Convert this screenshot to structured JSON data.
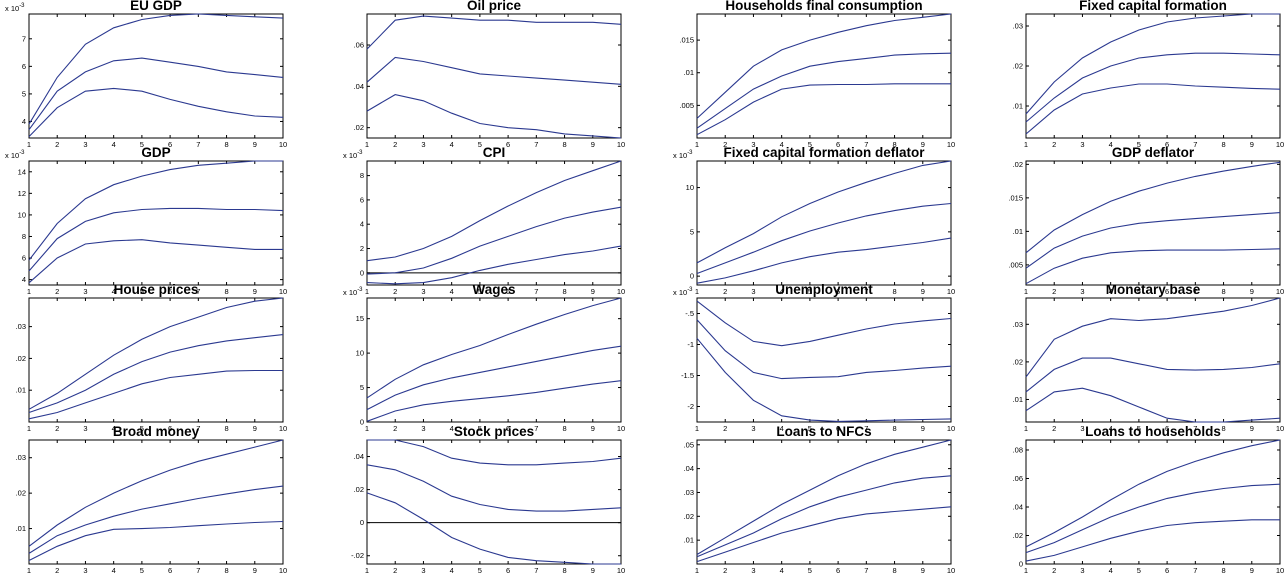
{
  "colors": {
    "line": "#2b3990",
    "axis": "#000000",
    "zero": "#000000"
  },
  "x_ticks": [
    1,
    2,
    3,
    4,
    5,
    6,
    7,
    8,
    9,
    10
  ],
  "chart_data": [
    {
      "type": "line",
      "title": "EU GDP",
      "exponent": "x 10",
      "exponent_power": "-3",
      "ylim": [
        3.4,
        7.9
      ],
      "yticks": [
        4,
        5,
        6,
        7
      ],
      "x": [
        1,
        2,
        3,
        4,
        5,
        6,
        7,
        8,
        9,
        10
      ],
      "series": [
        {
          "values": [
            3.9,
            5.6,
            6.8,
            7.4,
            7.7,
            7.85,
            7.9,
            7.85,
            7.8,
            7.75
          ]
        },
        {
          "values": [
            3.7,
            5.1,
            5.8,
            6.2,
            6.3,
            6.15,
            6.0,
            5.8,
            5.7,
            5.6
          ]
        },
        {
          "values": [
            3.45,
            4.5,
            5.1,
            5.2,
            5.1,
            4.8,
            4.55,
            4.35,
            4.2,
            4.15
          ]
        }
      ]
    },
    {
      "type": "line",
      "title": "Oil price",
      "ylim": [
        0.015,
        0.075
      ],
      "yticks": [
        0.02,
        0.04,
        0.06
      ],
      "x": [
        1,
        2,
        3,
        4,
        5,
        6,
        7,
        8,
        9,
        10
      ],
      "series": [
        {
          "values": [
            0.058,
            0.072,
            0.074,
            0.073,
            0.072,
            0.072,
            0.071,
            0.071,
            0.071,
            0.07
          ]
        },
        {
          "values": [
            0.042,
            0.054,
            0.052,
            0.049,
            0.046,
            0.045,
            0.044,
            0.043,
            0.042,
            0.041
          ]
        },
        {
          "values": [
            0.028,
            0.036,
            0.033,
            0.027,
            0.022,
            0.02,
            0.019,
            0.017,
            0.016,
            0.015
          ]
        }
      ]
    },
    {
      "type": "line",
      "title": "Households final consumption",
      "ylim": [
        0.0,
        0.019
      ],
      "yticks": [
        0.005,
        0.01,
        0.015
      ],
      "x": [
        1,
        2,
        3,
        4,
        5,
        6,
        7,
        8,
        9,
        10
      ],
      "series": [
        {
          "values": [
            0.003,
            0.007,
            0.011,
            0.0135,
            0.015,
            0.0162,
            0.0172,
            0.018,
            0.0185,
            0.019
          ]
        },
        {
          "values": [
            0.0015,
            0.0045,
            0.0075,
            0.0095,
            0.011,
            0.0117,
            0.0122,
            0.0127,
            0.0129,
            0.013
          ]
        },
        {
          "values": [
            0.0005,
            0.0028,
            0.0055,
            0.0075,
            0.0081,
            0.0082,
            0.0082,
            0.0083,
            0.0083,
            0.0083
          ]
        }
      ]
    },
    {
      "type": "line",
      "title": "Fixed capital formation",
      "ylim": [
        0.002,
        0.033
      ],
      "yticks": [
        0.01,
        0.02,
        0.03
      ],
      "x": [
        1,
        2,
        3,
        4,
        5,
        6,
        7,
        8,
        9,
        10
      ],
      "series": [
        {
          "values": [
            0.008,
            0.016,
            0.022,
            0.026,
            0.029,
            0.031,
            0.032,
            0.0325,
            0.033,
            0.033
          ]
        },
        {
          "values": [
            0.006,
            0.012,
            0.017,
            0.02,
            0.022,
            0.0228,
            0.0232,
            0.0232,
            0.023,
            0.0228
          ]
        },
        {
          "values": [
            0.003,
            0.009,
            0.013,
            0.0145,
            0.0155,
            0.0155,
            0.015,
            0.0147,
            0.0144,
            0.0142
          ]
        }
      ]
    },
    {
      "type": "line",
      "title": "GDP",
      "exponent": "x 10",
      "exponent_power": "-3",
      "ylim": [
        3.5,
        15
      ],
      "yticks": [
        4,
        6,
        8,
        10,
        12,
        14
      ],
      "x": [
        1,
        2,
        3,
        4,
        5,
        6,
        7,
        8,
        9,
        10
      ],
      "series": [
        {
          "values": [
            5.8,
            9.2,
            11.5,
            12.8,
            13.6,
            14.2,
            14.6,
            14.8,
            15.0,
            15.0
          ]
        },
        {
          "values": [
            4.8,
            7.8,
            9.4,
            10.2,
            10.5,
            10.6,
            10.6,
            10.5,
            10.5,
            10.4
          ]
        },
        {
          "values": [
            3.7,
            6.0,
            7.3,
            7.6,
            7.7,
            7.4,
            7.2,
            7.0,
            6.8,
            6.8
          ]
        }
      ]
    },
    {
      "type": "line",
      "title": "CPI",
      "exponent": "x 10",
      "exponent_power": "-3",
      "ylim": [
        -1.0,
        9.2
      ],
      "yticks": [
        0,
        2,
        4,
        6,
        8
      ],
      "zero_line": true,
      "x": [
        1,
        2,
        3,
        4,
        5,
        6,
        7,
        8,
        9,
        10
      ],
      "series": [
        {
          "values": [
            1.0,
            1.3,
            2.0,
            3.0,
            4.3,
            5.5,
            6.6,
            7.6,
            8.4,
            9.2
          ]
        },
        {
          "values": [
            -0.1,
            0.0,
            0.4,
            1.2,
            2.2,
            3.0,
            3.8,
            4.5,
            5.0,
            5.4
          ]
        },
        {
          "values": [
            -0.8,
            -0.9,
            -0.8,
            -0.4,
            0.2,
            0.7,
            1.1,
            1.5,
            1.8,
            2.2
          ]
        }
      ]
    },
    {
      "type": "line",
      "title": "Fixed capital formation deflator",
      "exponent": "x 10",
      "exponent_power": "-3",
      "ylim": [
        -1.0,
        13.0
      ],
      "yticks": [
        0,
        5,
        10
      ],
      "x": [
        1,
        2,
        3,
        4,
        5,
        6,
        7,
        8,
        9,
        10
      ],
      "series": [
        {
          "values": [
            1.5,
            3.2,
            4.8,
            6.7,
            8.2,
            9.5,
            10.6,
            11.6,
            12.5,
            13.0
          ]
        },
        {
          "values": [
            0.3,
            1.5,
            2.7,
            4.0,
            5.1,
            6.0,
            6.8,
            7.4,
            7.9,
            8.2
          ]
        },
        {
          "values": [
            -0.8,
            -0.2,
            0.6,
            1.5,
            2.2,
            2.7,
            3.0,
            3.4,
            3.8,
            4.3
          ]
        }
      ]
    },
    {
      "type": "line",
      "title": "GDP deflator",
      "ylim": [
        0.002,
        0.0205
      ],
      "yticks": [
        0.005,
        0.01,
        0.015,
        0.02
      ],
      "x": [
        1,
        2,
        3,
        4,
        5,
        6,
        7,
        8,
        9,
        10
      ],
      "series": [
        {
          "values": [
            0.0068,
            0.0102,
            0.0125,
            0.0145,
            0.016,
            0.0172,
            0.0182,
            0.019,
            0.0197,
            0.0203
          ]
        },
        {
          "values": [
            0.0045,
            0.0075,
            0.0093,
            0.0105,
            0.0112,
            0.0116,
            0.0119,
            0.0122,
            0.0125,
            0.0128
          ]
        },
        {
          "values": [
            0.0022,
            0.0045,
            0.006,
            0.0068,
            0.0071,
            0.0072,
            0.0072,
            0.0072,
            0.0073,
            0.0074
          ]
        }
      ]
    },
    {
      "type": "line",
      "title": "House prices",
      "ylim": [
        0.0,
        0.039
      ],
      "yticks": [
        0.01,
        0.02,
        0.03
      ],
      "x": [
        1,
        2,
        3,
        4,
        5,
        6,
        7,
        8,
        9,
        10
      ],
      "series": [
        {
          "values": [
            0.004,
            0.009,
            0.015,
            0.021,
            0.026,
            0.03,
            0.033,
            0.036,
            0.038,
            0.039
          ]
        },
        {
          "values": [
            0.003,
            0.006,
            0.01,
            0.015,
            0.019,
            0.022,
            0.024,
            0.0255,
            0.0265,
            0.0275
          ]
        },
        {
          "values": [
            0.001,
            0.003,
            0.006,
            0.009,
            0.012,
            0.014,
            0.015,
            0.016,
            0.0162,
            0.0162
          ]
        }
      ]
    },
    {
      "type": "line",
      "title": "Wages",
      "exponent": "x 10",
      "exponent_power": "-3",
      "ylim": [
        0.0,
        18.0
      ],
      "yticks": [
        0,
        5,
        10,
        15
      ],
      "x": [
        1,
        2,
        3,
        4,
        5,
        6,
        7,
        8,
        9,
        10
      ],
      "series": [
        {
          "values": [
            3.5,
            6.2,
            8.3,
            9.8,
            11.1,
            12.7,
            14.2,
            15.6,
            16.9,
            18.0
          ]
        },
        {
          "values": [
            1.8,
            3.9,
            5.4,
            6.4,
            7.2,
            8.0,
            8.8,
            9.6,
            10.4,
            11.0
          ]
        },
        {
          "values": [
            0.1,
            1.6,
            2.5,
            3.0,
            3.4,
            3.8,
            4.3,
            4.9,
            5.5,
            6.0
          ]
        }
      ]
    },
    {
      "type": "line",
      "title": "Unemployment",
      "exponent": "x 10",
      "exponent_power": "-3",
      "ylim": [
        -2.25,
        -0.25
      ],
      "yticks": [
        -2,
        -1.5,
        -1,
        -0.5
      ],
      "x": [
        1,
        2,
        3,
        4,
        5,
        6,
        7,
        8,
        9,
        10
      ],
      "series": [
        {
          "values": [
            -0.3,
            -0.65,
            -0.95,
            -1.02,
            -0.95,
            -0.85,
            -0.75,
            -0.67,
            -0.62,
            -0.58
          ]
        },
        {
          "values": [
            -0.6,
            -1.1,
            -1.45,
            -1.55,
            -1.53,
            -1.52,
            -1.45,
            -1.42,
            -1.38,
            -1.35
          ]
        },
        {
          "values": [
            -0.9,
            -1.45,
            -1.9,
            -2.15,
            -2.22,
            -2.24,
            -2.23,
            -2.22,
            -2.21,
            -2.2
          ]
        }
      ]
    },
    {
      "type": "line",
      "title": "Monetary base",
      "ylim": [
        0.004,
        0.037
      ],
      "yticks": [
        0.01,
        0.02,
        0.03
      ],
      "x": [
        1,
        2,
        3,
        4,
        5,
        6,
        7,
        8,
        9,
        10
      ],
      "series": [
        {
          "values": [
            0.016,
            0.026,
            0.0295,
            0.0315,
            0.031,
            0.0315,
            0.0325,
            0.0335,
            0.035,
            0.037
          ]
        },
        {
          "values": [
            0.012,
            0.018,
            0.021,
            0.021,
            0.0195,
            0.018,
            0.0178,
            0.018,
            0.0185,
            0.0195
          ]
        },
        {
          "values": [
            0.007,
            0.012,
            0.013,
            0.011,
            0.008,
            0.005,
            0.004,
            0.004,
            0.0045,
            0.005
          ]
        }
      ]
    },
    {
      "type": "line",
      "title": "Broad money",
      "ylim": [
        0.0,
        0.035
      ],
      "yticks": [
        0.01,
        0.02,
        0.03
      ],
      "x": [
        1,
        2,
        3,
        4,
        5,
        6,
        7,
        8,
        9,
        10
      ],
      "series": [
        {
          "values": [
            0.005,
            0.011,
            0.016,
            0.02,
            0.0235,
            0.0265,
            0.029,
            0.031,
            0.033,
            0.035
          ]
        },
        {
          "values": [
            0.003,
            0.008,
            0.011,
            0.0135,
            0.0155,
            0.017,
            0.0185,
            0.0198,
            0.021,
            0.022
          ]
        },
        {
          "values": [
            0.001,
            0.005,
            0.008,
            0.0098,
            0.01,
            0.0103,
            0.0108,
            0.0113,
            0.0117,
            0.012
          ]
        }
      ]
    },
    {
      "type": "line",
      "title": "Stock prices",
      "ylim": [
        -0.025,
        0.05
      ],
      "yticks": [
        -0.02,
        0,
        0.02,
        0.04
      ],
      "zero_line": true,
      "x": [
        1,
        2,
        3,
        4,
        5,
        6,
        7,
        8,
        9,
        10
      ],
      "series": [
        {
          "values": [
            0.05,
            0.05,
            0.046,
            0.039,
            0.036,
            0.035,
            0.035,
            0.036,
            0.037,
            0.039
          ]
        },
        {
          "values": [
            0.035,
            0.032,
            0.025,
            0.016,
            0.011,
            0.008,
            0.007,
            0.007,
            0.008,
            0.009
          ]
        },
        {
          "values": [
            0.018,
            0.012,
            0.002,
            -0.009,
            -0.016,
            -0.021,
            -0.023,
            -0.024,
            -0.025,
            -0.025
          ]
        }
      ]
    },
    {
      "type": "line",
      "title": "Loans to NFCs",
      "ylim": [
        0.0,
        0.052
      ],
      "yticks": [
        0.01,
        0.02,
        0.03,
        0.04,
        0.05
      ],
      "x": [
        1,
        2,
        3,
        4,
        5,
        6,
        7,
        8,
        9,
        10
      ],
      "series": [
        {
          "values": [
            0.004,
            0.011,
            0.018,
            0.025,
            0.031,
            0.037,
            0.042,
            0.046,
            0.049,
            0.052
          ]
        },
        {
          "values": [
            0.003,
            0.008,
            0.013,
            0.019,
            0.024,
            0.028,
            0.031,
            0.034,
            0.036,
            0.037
          ]
        },
        {
          "values": [
            0.001,
            0.005,
            0.009,
            0.013,
            0.016,
            0.019,
            0.021,
            0.022,
            0.023,
            0.024
          ]
        }
      ]
    },
    {
      "type": "line",
      "title": "Loans to households",
      "ylim": [
        0.0,
        0.087
      ],
      "yticks": [
        0,
        0.02,
        0.04,
        0.06,
        0.08
      ],
      "x": [
        1,
        2,
        3,
        4,
        5,
        6,
        7,
        8,
        9,
        10
      ],
      "series": [
        {
          "values": [
            0.012,
            0.022,
            0.033,
            0.045,
            0.056,
            0.065,
            0.072,
            0.078,
            0.083,
            0.087
          ]
        },
        {
          "values": [
            0.008,
            0.015,
            0.024,
            0.033,
            0.04,
            0.046,
            0.05,
            0.053,
            0.055,
            0.056
          ]
        },
        {
          "values": [
            0.002,
            0.006,
            0.012,
            0.018,
            0.023,
            0.027,
            0.029,
            0.03,
            0.031,
            0.031
          ]
        }
      ]
    }
  ]
}
